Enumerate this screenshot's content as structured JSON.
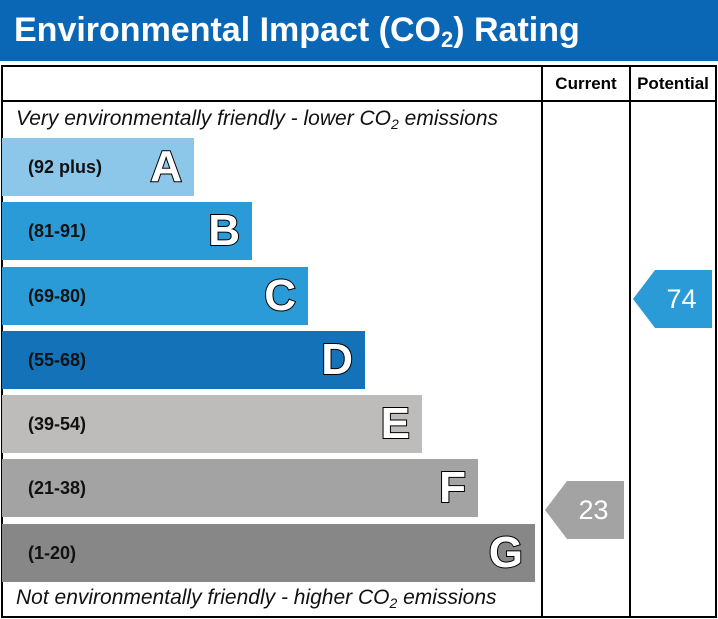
{
  "title": {
    "prefix": "Environmental Impact (CO",
    "sub": "2",
    "suffix": ") Rating"
  },
  "columns": {
    "current": "Current",
    "potential": "Potential"
  },
  "top_note": {
    "prefix": "Very environmentally friendly - lower CO",
    "sub": "2",
    "suffix": " emissions"
  },
  "bottom_note": {
    "prefix": "Not environmentally friendly - higher CO",
    "sub": "2",
    "suffix": " emissions"
  },
  "bands": [
    {
      "letter": "A",
      "range": "(92 plus)",
      "color": "#8cc6e8"
    },
    {
      "letter": "B",
      "range": "(81-91)",
      "color": "#2a9bd6"
    },
    {
      "letter": "C",
      "range": "(69-80)",
      "color": "#2a9bd6"
    },
    {
      "letter": "D",
      "range": "(55-68)",
      "color": "#1472b8"
    },
    {
      "letter": "E",
      "range": "(39-54)",
      "color": "#bdbcbb"
    },
    {
      "letter": "F",
      "range": "(21-38)",
      "color": "#a3a3a3"
    },
    {
      "letter": "G",
      "range": "(1-20)",
      "color": "#878787"
    }
  ],
  "current": {
    "value": "23",
    "band": "F",
    "color": "#a3a3a3"
  },
  "potential": {
    "value": "74",
    "band": "C",
    "color": "#2a9bd6"
  }
}
